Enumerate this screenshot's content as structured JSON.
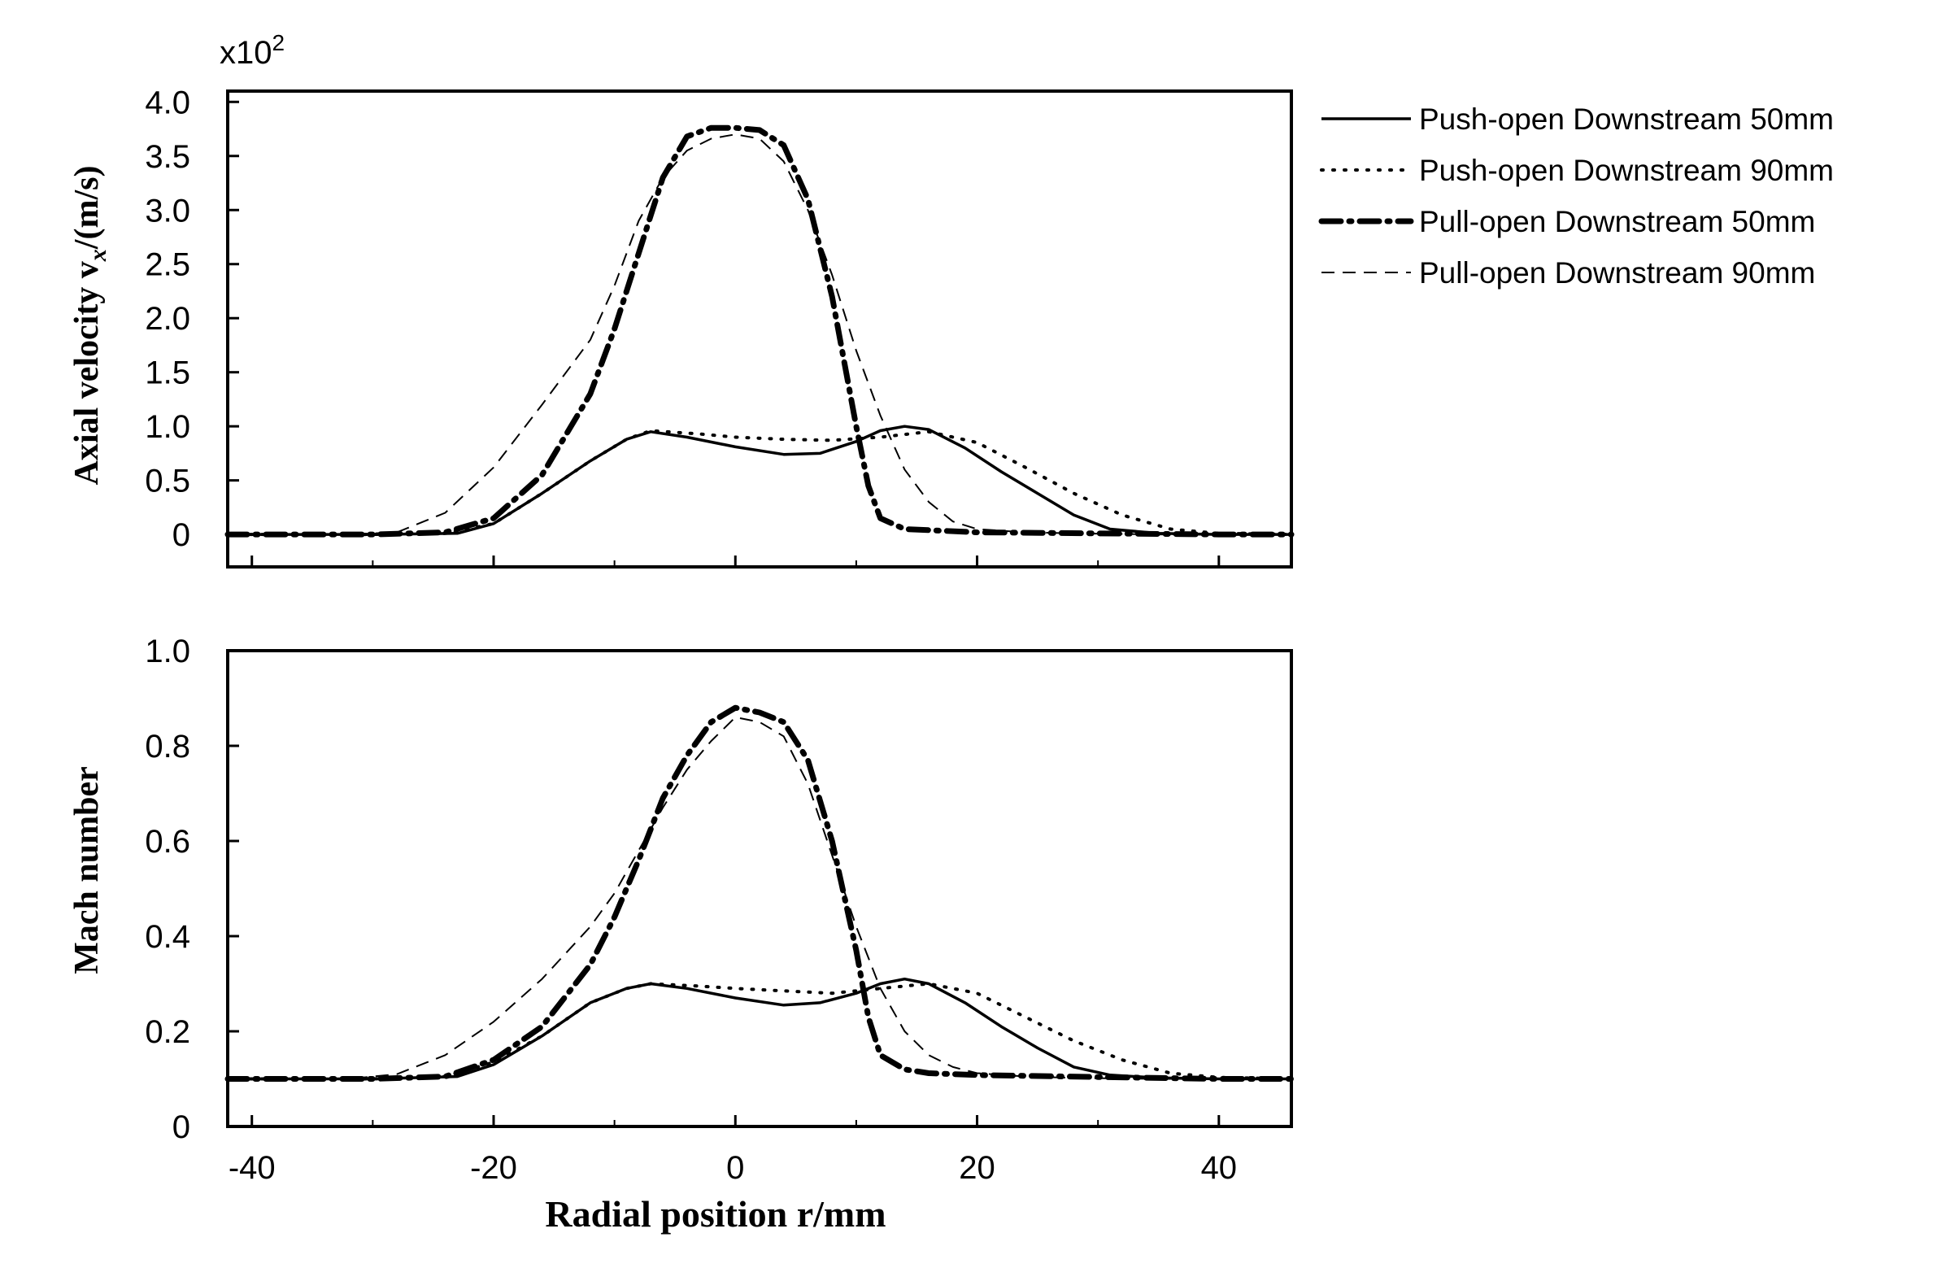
{
  "chart_data": [
    {
      "type": "line",
      "ylabel": "Axial velocity v",
      "ylabel_sub": "x",
      "ylabel_units": "/(m/s)",
      "multiplier": "x10",
      "multiplier_exp": "2",
      "xlim": [
        -42,
        46
      ],
      "ylim": [
        -0.3,
        4.1
      ],
      "yticks": [
        0,
        0.5,
        1.0,
        1.5,
        2.0,
        2.5,
        3.0,
        3.5,
        4.0
      ],
      "ytick_labels": [
        "0",
        "0.5",
        "1.0",
        "1.5",
        "2.0",
        "2.5",
        "3.0",
        "3.5",
        "4.0"
      ],
      "xticks": [
        -40,
        -20,
        0,
        20,
        40
      ],
      "series": [
        {
          "name": "Push-open Downstream 50mm",
          "style": "solid",
          "x": [
            -42,
            -30,
            -23,
            -20,
            -16,
            -12,
            -9,
            -7,
            -4,
            0,
            4,
            7,
            10,
            12,
            14,
            16,
            19,
            22,
            25,
            28,
            31,
            35,
            40,
            46
          ],
          "y": [
            0,
            0,
            0.01,
            0.1,
            0.38,
            0.68,
            0.88,
            0.95,
            0.9,
            0.81,
            0.74,
            0.75,
            0.86,
            0.96,
            1.0,
            0.97,
            0.8,
            0.58,
            0.38,
            0.18,
            0.05,
            0.01,
            0,
            0
          ]
        },
        {
          "name": "Push-open Downstream 90mm",
          "style": "dotted",
          "x": [
            -42,
            -30,
            -24,
            -20,
            -16,
            -12,
            -9,
            -7,
            -3,
            0,
            4,
            8,
            12,
            16,
            20,
            24,
            28,
            32,
            36,
            40,
            46
          ],
          "y": [
            0,
            0,
            0.01,
            0.1,
            0.38,
            0.68,
            0.88,
            0.96,
            0.93,
            0.9,
            0.88,
            0.87,
            0.9,
            0.95,
            0.85,
            0.62,
            0.38,
            0.18,
            0.05,
            0.01,
            0
          ]
        },
        {
          "name": "Pull-open Downstream 50mm",
          "style": "dashdot",
          "x": [
            -42,
            -30,
            -24,
            -20,
            -16,
            -12,
            -10,
            -8,
            -6,
            -4,
            -2,
            0,
            2,
            4,
            6,
            8,
            10,
            11,
            12,
            14,
            16,
            20,
            30,
            40,
            46
          ],
          "y": [
            0,
            0,
            0.02,
            0.15,
            0.55,
            1.3,
            1.9,
            2.6,
            3.3,
            3.68,
            3.76,
            3.76,
            3.74,
            3.6,
            3.1,
            2.2,
            1.0,
            0.45,
            0.15,
            0.05,
            0.04,
            0.02,
            0.01,
            0,
            0
          ]
        },
        {
          "name": "Pull-open Downstream 90mm",
          "style": "dashed",
          "x": [
            -42,
            -32,
            -28,
            -24,
            -20,
            -16,
            -12,
            -10,
            -8,
            -6,
            -4,
            -2,
            0,
            2,
            4,
            6,
            8,
            10,
            12,
            14,
            16,
            18,
            20,
            24,
            28,
            35,
            46
          ],
          "y": [
            0,
            0,
            0.02,
            0.2,
            0.62,
            1.2,
            1.8,
            2.3,
            2.9,
            3.3,
            3.55,
            3.66,
            3.7,
            3.66,
            3.45,
            3.0,
            2.4,
            1.7,
            1.1,
            0.6,
            0.3,
            0.12,
            0.05,
            0.02,
            0.01,
            0,
            0
          ]
        }
      ]
    },
    {
      "type": "line",
      "ylabel": "Mach number",
      "xlabel": "Radial position r/mm",
      "xlim": [
        -42,
        46
      ],
      "ylim": [
        0,
        1.0
      ],
      "yticks": [
        0,
        0.2,
        0.4,
        0.6,
        0.8,
        1.0
      ],
      "ytick_labels": [
        "0",
        "0.2",
        "0.4",
        "0.6",
        "0.8",
        "1.0"
      ],
      "xticks": [
        -40,
        -20,
        0,
        20,
        40
      ],
      "xtick_labels": [
        "-40",
        "-20",
        "0",
        "20",
        "40"
      ],
      "series": [
        {
          "name": "Push-open Downstream 50mm",
          "style": "solid",
          "x": [
            -42,
            -30,
            -23,
            -20,
            -16,
            -12,
            -9,
            -7,
            -4,
            0,
            4,
            7,
            10,
            12,
            14,
            16,
            19,
            22,
            25,
            28,
            31,
            35,
            40,
            46
          ],
          "y": [
            0.1,
            0.1,
            0.105,
            0.13,
            0.19,
            0.26,
            0.29,
            0.3,
            0.29,
            0.27,
            0.255,
            0.26,
            0.28,
            0.3,
            0.31,
            0.3,
            0.26,
            0.21,
            0.165,
            0.125,
            0.108,
            0.102,
            0.1,
            0.1
          ]
        },
        {
          "name": "Push-open Downstream 90mm",
          "style": "dotted",
          "x": [
            -42,
            -30,
            -24,
            -20,
            -16,
            -12,
            -9,
            -7,
            -3,
            0,
            4,
            8,
            12,
            16,
            20,
            24,
            28,
            32,
            36,
            40,
            46
          ],
          "y": [
            0.1,
            0.1,
            0.105,
            0.135,
            0.19,
            0.26,
            0.29,
            0.3,
            0.295,
            0.29,
            0.285,
            0.28,
            0.29,
            0.3,
            0.28,
            0.23,
            0.18,
            0.14,
            0.112,
            0.103,
            0.1
          ]
        },
        {
          "name": "Pull-open Downstream 50mm",
          "style": "dashdot",
          "x": [
            -42,
            -30,
            -24,
            -20,
            -16,
            -12,
            -10,
            -8,
            -6,
            -4,
            -2,
            0,
            2,
            4,
            6,
            8,
            10,
            11,
            12,
            14,
            16,
            20,
            30,
            40,
            46
          ],
          "y": [
            0.1,
            0.1,
            0.105,
            0.14,
            0.21,
            0.34,
            0.44,
            0.56,
            0.69,
            0.78,
            0.85,
            0.88,
            0.87,
            0.85,
            0.77,
            0.6,
            0.37,
            0.23,
            0.15,
            0.12,
            0.112,
            0.108,
            0.104,
            0.1,
            0.1
          ]
        },
        {
          "name": "Pull-open Downstream 90mm",
          "style": "dashed",
          "x": [
            -42,
            -32,
            -28,
            -24,
            -20,
            -16,
            -12,
            -10,
            -8,
            -6,
            -4,
            -2,
            0,
            2,
            4,
            6,
            8,
            10,
            12,
            14,
            16,
            18,
            20,
            24,
            28,
            35,
            46
          ],
          "y": [
            0.1,
            0.1,
            0.11,
            0.15,
            0.22,
            0.31,
            0.42,
            0.49,
            0.58,
            0.67,
            0.75,
            0.81,
            0.86,
            0.85,
            0.82,
            0.72,
            0.57,
            0.42,
            0.29,
            0.2,
            0.15,
            0.125,
            0.112,
            0.105,
            0.102,
            0.1,
            0.1
          ]
        }
      ]
    }
  ],
  "legend": {
    "placement": "right",
    "entries": [
      {
        "label": "Push-open Downstream 50mm",
        "style": "solid"
      },
      {
        "label": "Push-open Downstream 90mm",
        "style": "dotted"
      },
      {
        "label": "Pull-open Downstream 50mm",
        "style": "dashdot"
      },
      {
        "label": "Pull-open Downstream 90mm",
        "style": "dashed"
      }
    ]
  },
  "colors": {
    "line": "#000000",
    "background": "#ffffff"
  }
}
